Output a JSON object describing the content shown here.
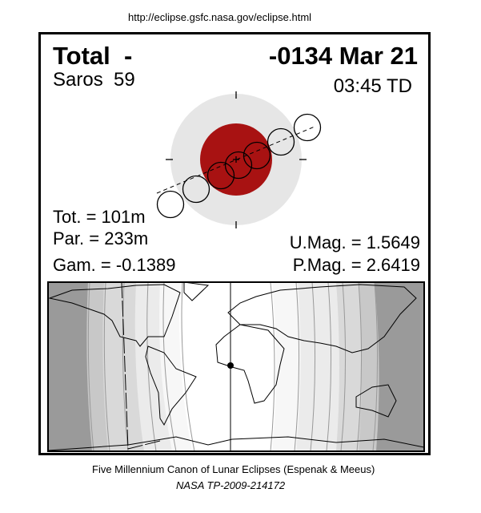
{
  "source_url": "http://eclipse.gsfc.nasa.gov/eclipse.html",
  "eclipse": {
    "type": "Total  -",
    "date": "-0134 Mar 21",
    "saros": "Saros  59",
    "time": "03:45 TD",
    "tot": "Tot. = 101m",
    "par": "Par. = 233m",
    "gam": "Gam. = -0.1389",
    "umag": "U.Mag. = 1.5649",
    "pmag": "P.Mag. = 2.6419"
  },
  "colors": {
    "umbra": "#a81212",
    "penumbra": "#e6e6e6",
    "night": "#9a9a9a"
  },
  "footer": {
    "line1": "Five Millennium Canon of Lunar Eclipses (Espenak & Meeus)",
    "line2": "NASA TP-2009-214172"
  }
}
